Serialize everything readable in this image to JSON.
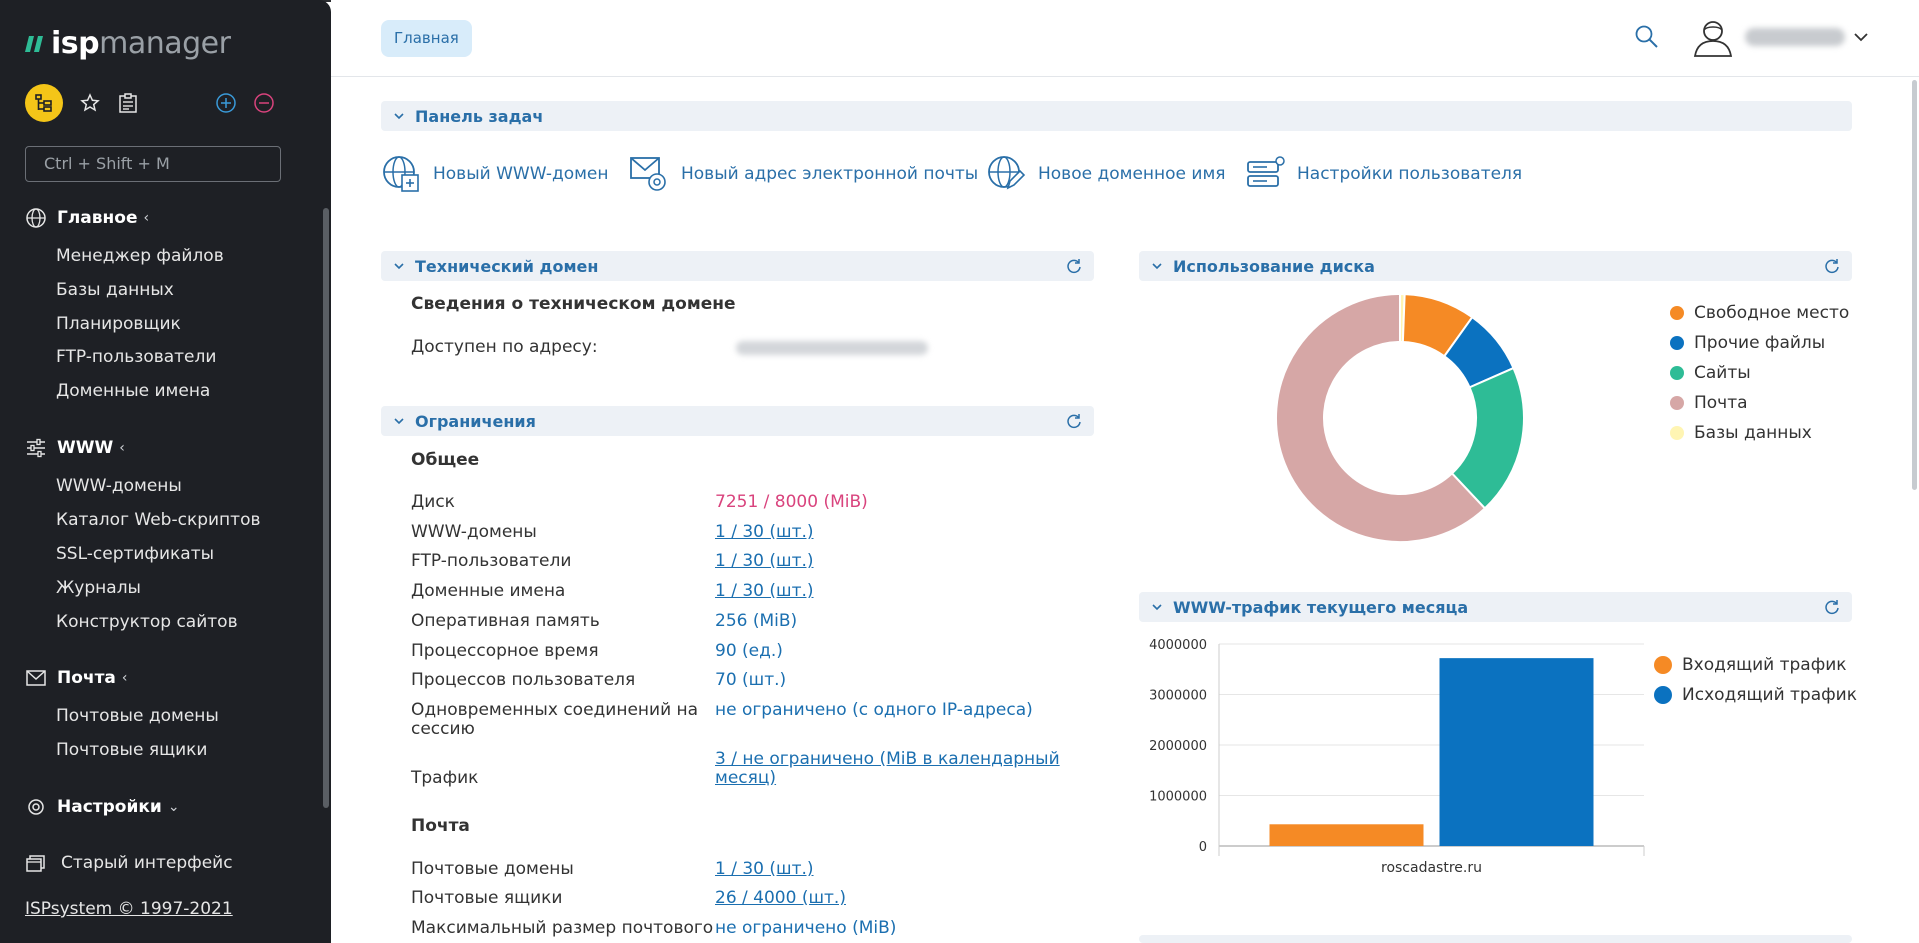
{
  "app": {
    "logo_isp": "isp",
    "logo_manager": "manager"
  },
  "sidebar": {
    "search_placeholder": "Ctrl + Shift + M",
    "sections": [
      {
        "label": "Главное",
        "icon": "globe-icon",
        "items": [
          "Менеджер файлов",
          "Базы данных",
          "Планировщик",
          "FTP-пользователи",
          "Доменные имена"
        ]
      },
      {
        "label": "WWW",
        "icon": "sliders-icon",
        "items": [
          "WWW-домены",
          "Каталог Web-скриптов",
          "SSL-сертификаты",
          "Журналы",
          "Конструктор сайтов"
        ]
      },
      {
        "label": "Почта",
        "icon": "mail-icon",
        "items": [
          "Почтовые домены",
          "Почтовые ящики"
        ]
      },
      {
        "label": "Настройки",
        "icon": "gear-icon",
        "items": []
      }
    ],
    "old_interface": "Старый интерфейс",
    "copyright": "ISPsystem © 1997-2021"
  },
  "header": {
    "breadcrumb": "Главная"
  },
  "taskbar": {
    "title": "Панель задач",
    "actions": [
      {
        "label": "Новый WWW-домен",
        "icon": "globe-plus-icon"
      },
      {
        "label": "Новый адрес электронной почты",
        "icon": "mail-gear-icon"
      },
      {
        "label": "Новое доменное имя",
        "icon": "globe-edit-icon"
      },
      {
        "label": "Настройки пользователя",
        "icon": "user-settings-icon"
      }
    ]
  },
  "tech_domain": {
    "title": "Технический домен",
    "subtitle": "Сведения о техническом домене",
    "available_label": "Доступен по адресу:"
  },
  "limits": {
    "title": "Ограничения",
    "general_title": "Общее",
    "rows": [
      {
        "label": "Диск",
        "value": "7251 / 8000 (MiB)",
        "kind": "danger"
      },
      {
        "label": "WWW-домены",
        "value": "1 / 30 (шт.)",
        "kind": "link"
      },
      {
        "label": "FTP-пользователи",
        "value": "1 / 30 (шт.)",
        "kind": "link"
      },
      {
        "label": "Доменные имена",
        "value": "1 / 30 (шт.)",
        "kind": "link"
      },
      {
        "label": "Оперативная память",
        "value": "256 (MiB)",
        "kind": "plain"
      },
      {
        "label": "Процессорное время",
        "value": "90 (ед.)",
        "kind": "plain"
      },
      {
        "label": "Процессов пользователя",
        "value": "70 (шт.)",
        "kind": "plain"
      }
    ],
    "sessions_label_1": "Одновременных соединений на",
    "sessions_label_2": "сессию",
    "sessions_value": "не ограничено (с одного IP-адреса)",
    "traffic_label": "Трафик",
    "traffic_value_1": "3 / не ограничено (MiB в календарный",
    "traffic_value_2": "месяц)",
    "mail_title": "Почта",
    "mail_rows": [
      {
        "label": "Почтовые домены",
        "value": "1 / 30 (шт.)",
        "kind": "link"
      },
      {
        "label": "Почтовые ящики",
        "value": "26 / 4000 (шт.)",
        "kind": "link"
      },
      {
        "label": "Максимальный размер почтового",
        "value": "не ограничено (MiB)",
        "kind": "plain"
      }
    ]
  },
  "disk_usage": {
    "title": "Использование диска",
    "chart_data": {
      "type": "pie",
      "categories": [
        "Свободное место",
        "Прочие файлы",
        "Сайты",
        "Почта",
        "Базы данных"
      ],
      "values": [
        9.3,
        8.5,
        19.6,
        62.0,
        0.6
      ],
      "colors": [
        "#f58a25",
        "#0b72c0",
        "#2ebc96",
        "#d6a7a6",
        "#fff5b3"
      ],
      "legend": "right"
    }
  },
  "traffic": {
    "title": "WWW-трафик текущего месяца",
    "chart_data": {
      "type": "bar",
      "categories": [
        "roscadastre.ru"
      ],
      "series": [
        {
          "name": "Входящий трафик",
          "values": [
            430000
          ],
          "color": "#f58a25"
        },
        {
          "name": "Исходящий трафик",
          "values": [
            3720000
          ],
          "color": "#0b72c0"
        }
      ],
      "ylim": [
        0,
        4000000
      ],
      "yticks": [
        "0",
        "1000000",
        "2000000",
        "3000000",
        "4000000"
      ],
      "grid": true,
      "legend": "right"
    }
  }
}
